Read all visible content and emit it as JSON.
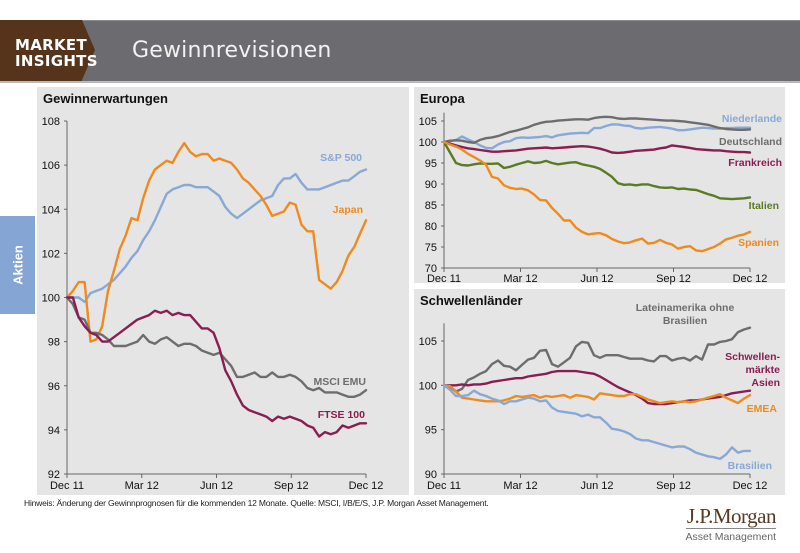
{
  "header": {
    "brand_line1": "MARKET",
    "brand_line2": "INSIGHTS",
    "title": "Gewinnrevisionen",
    "colors": {
      "bar": "#6c6c70",
      "brand": "#56331b"
    }
  },
  "side_tab": {
    "label": "Aktien",
    "color": "#85a6d4"
  },
  "footnote": "Hinweis: Änderung der Gewinnprognosen für die kommenden 12 Monate. Quelle: MSCI, I/B/E/S, J.P. Morgan Asset Management.",
  "logo": {
    "main": "J.P.Morgan",
    "sub": "Asset Management"
  },
  "chart_data": [
    {
      "id": "gewinnerwartungen",
      "type": "line",
      "title": "Gewinnerwartungen",
      "xlabel": "",
      "ylabel": "",
      "x_ticks": [
        "Dec 11",
        "Mar 12",
        "Jun 12",
        "Sep 12",
        "Dec 12"
      ],
      "y_ticks": [
        92,
        94,
        96,
        98,
        100,
        102,
        104,
        106,
        108
      ],
      "ylim": [
        92,
        108
      ],
      "grid": false,
      "legend": "inline labels at line ends (right)",
      "series": [
        {
          "name": "S&P 500",
          "color": "#88a8d6",
          "values": [
            100,
            100,
            100,
            99.8,
            100.2,
            100.3,
            100.4,
            100.6,
            100.8,
            101.1,
            101.4,
            101.8,
            102.1,
            102.6,
            103.0,
            103.5,
            104.1,
            104.7,
            104.9,
            105.0,
            105.1,
            105.1,
            105.0,
            105.0,
            105.0,
            104.8,
            104.6,
            104.1,
            103.8,
            103.6,
            103.8,
            104.0,
            104.2,
            104.4,
            104.5,
            104.6,
            105.1,
            105.4,
            105.4,
            105.6,
            105.2,
            104.9,
            104.9,
            104.9,
            105.0,
            105.1,
            105.2,
            105.3,
            105.3,
            105.5,
            105.7,
            105.8
          ]
        },
        {
          "name": "Japan",
          "color": "#ef8a1e",
          "values": [
            100,
            100.3,
            100.7,
            100.7,
            98.0,
            98.1,
            98.7,
            100.3,
            101.2,
            102.2,
            102.8,
            103.6,
            103.5,
            104.5,
            105.3,
            105.8,
            106.0,
            106.2,
            106.1,
            106.6,
            107.0,
            106.6,
            106.4,
            106.5,
            106.5,
            106.2,
            106.3,
            106.2,
            106.1,
            105.8,
            105.4,
            105.2,
            104.9,
            104.6,
            104.2,
            103.7,
            103.8,
            103.9,
            104.3,
            104.2,
            103.3,
            103.0,
            103.0,
            100.8,
            100.6,
            100.4,
            100.7,
            101.2,
            101.9,
            102.3,
            102.9,
            103.5
          ]
        },
        {
          "name": "MSCI EMU",
          "color": "#6d6d6d",
          "values": [
            100,
            99.7,
            99.1,
            99.0,
            98.4,
            98.4,
            98.3,
            98.1,
            97.8,
            97.8,
            97.8,
            97.9,
            98.0,
            98.3,
            98.0,
            97.9,
            98.1,
            98.2,
            98.0,
            97.8,
            97.9,
            97.9,
            97.8,
            97.6,
            97.5,
            97.4,
            97.5,
            97.2,
            96.9,
            96.4,
            96.4,
            96.5,
            96.6,
            96.4,
            96.4,
            96.6,
            96.4,
            96.4,
            96.5,
            96.4,
            96.2,
            95.9,
            95.8,
            95.9,
            95.7,
            95.7,
            95.7,
            95.6,
            95.5,
            95.5,
            95.6,
            95.8
          ]
        },
        {
          "name": "FTSE 100",
          "color": "#8a1d52",
          "values": [
            100,
            100,
            99.1,
            98.7,
            98.4,
            98.3,
            98.0,
            98.0,
            98.2,
            98.4,
            98.6,
            98.8,
            99.0,
            99.1,
            99.2,
            99.4,
            99.3,
            99.4,
            99.2,
            99.3,
            99.2,
            99.2,
            98.9,
            98.6,
            98.6,
            98.4,
            97.7,
            96.7,
            96.2,
            95.6,
            95.1,
            94.9,
            94.8,
            94.7,
            94.6,
            94.4,
            94.6,
            94.5,
            94.6,
            94.5,
            94.4,
            94.2,
            94.1,
            93.7,
            93.9,
            93.8,
            93.9,
            94.2,
            94.1,
            94.2,
            94.3,
            94.3
          ]
        }
      ]
    },
    {
      "id": "europa",
      "type": "line",
      "title": "Europa",
      "xlabel": "",
      "ylabel": "",
      "x_ticks": [
        "Dec 11",
        "Mar 12",
        "Jun 12",
        "Sep 12",
        "Dec 12"
      ],
      "y_ticks": [
        70,
        75,
        80,
        85,
        90,
        95,
        100,
        105
      ],
      "ylim": [
        70,
        107
      ],
      "grid": false,
      "legend": "inline labels at line ends (right)",
      "series": [
        {
          "name": "Niederlande",
          "color": "#88a8d6",
          "values": [
            100,
            100.2,
            100.5,
            101.3,
            100.6,
            100.0,
            99.2,
            98.6,
            98.5,
            99.4,
            100.0,
            100.2,
            100.9,
            101.1,
            101.0,
            101.1,
            101.2,
            101.4,
            101.1,
            101.6,
            101.8,
            102.0,
            102.1,
            102.2,
            102.1,
            103.3,
            103.3,
            103.8,
            104.2,
            104.2,
            103.9,
            103.8,
            103.3,
            103.2,
            103.4,
            103.5,
            103.6,
            103.4,
            103.2,
            102.8,
            102.8,
            103.0,
            103.2,
            103.4,
            103.3,
            103.2,
            103.2,
            103.3,
            103.3,
            103.4,
            103.4,
            103.4
          ]
        },
        {
          "name": "Deutschland",
          "color": "#6d6d6d",
          "values": [
            100,
            100.3,
            100.4,
            100.3,
            100.0,
            99.8,
            100.5,
            100.9,
            101.1,
            101.4,
            101.9,
            102.4,
            102.7,
            103.1,
            103.5,
            104.1,
            104.5,
            104.8,
            104.9,
            105.1,
            105.2,
            105.3,
            105.4,
            105.4,
            105.3,
            105.7,
            105.9,
            106.0,
            105.9,
            105.6,
            105.5,
            105.6,
            105.6,
            105.5,
            105.4,
            105.3,
            105.2,
            105.1,
            105.1,
            105.0,
            104.9,
            104.7,
            104.5,
            104.3,
            104.1,
            103.7,
            103.3,
            103.1,
            103.0,
            102.9,
            102.9,
            103.0
          ]
        },
        {
          "name": "Frankreich",
          "color": "#8a1d52",
          "values": [
            100,
            99.6,
            99.2,
            98.8,
            98.5,
            98.3,
            98.1,
            97.9,
            97.7,
            97.7,
            97.8,
            97.9,
            98.0,
            98.2,
            98.4,
            98.5,
            98.6,
            98.7,
            98.5,
            98.6,
            98.7,
            98.8,
            98.9,
            99.0,
            98.9,
            98.7,
            98.4,
            98.0,
            97.5,
            97.4,
            97.5,
            97.7,
            97.9,
            98.0,
            98.1,
            98.2,
            98.5,
            98.7,
            99.2,
            99.0,
            98.8,
            98.6,
            98.3,
            98.2,
            98.1,
            98.0,
            98.0,
            97.8,
            97.7,
            97.6,
            97.6,
            97.5
          ]
        },
        {
          "name": "Italien",
          "color": "#5b7a24",
          "values": [
            100,
            97.5,
            95.0,
            94.5,
            94.4,
            94.7,
            94.9,
            94.8,
            94.8,
            94.9,
            93.8,
            94.1,
            94.6,
            95.0,
            95.4,
            95.0,
            95.1,
            95.5,
            95.0,
            94.7,
            94.9,
            95.1,
            95.2,
            94.7,
            94.4,
            94.1,
            93.6,
            92.7,
            91.7,
            90.2,
            89.8,
            89.9,
            89.7,
            89.9,
            89.9,
            89.5,
            89.2,
            89.1,
            89.2,
            88.8,
            88.9,
            88.7,
            88.6,
            88.1,
            87.6,
            87.2,
            86.6,
            86.5,
            86.4,
            86.5,
            86.6,
            86.8
          ]
        },
        {
          "name": "Spanien",
          "color": "#ef8a1e",
          "values": [
            100,
            99.4,
            98.9,
            98.2,
            97.2,
            96.4,
            95.6,
            94.6,
            91.7,
            91.3,
            89.7,
            89.1,
            88.8,
            88.9,
            88.5,
            87.5,
            86.2,
            86.1,
            84.3,
            82.9,
            81.3,
            81.3,
            79.6,
            78.6,
            78.0,
            78.2,
            78.3,
            77.8,
            76.9,
            76.3,
            75.9,
            76.1,
            76.6,
            77.0,
            75.8,
            76.0,
            76.7,
            76.0,
            75.6,
            74.6,
            75.0,
            75.2,
            74.2,
            74.0,
            74.5,
            75.0,
            75.8,
            76.8,
            77.2,
            77.7,
            78.0,
            78.6
          ]
        }
      ]
    },
    {
      "id": "schwellenlaender",
      "type": "line",
      "title": "Schwellenländer",
      "xlabel": "",
      "ylabel": "",
      "x_ticks": [
        "Dec 11",
        "Mar 12",
        "Jun 12",
        "Sep 12",
        "Dec 12"
      ],
      "y_ticks": [
        90,
        95,
        100,
        105
      ],
      "ylim": [
        90,
        107
      ],
      "grid": false,
      "legend": "inline labels at right",
      "series": [
        {
          "name": "Lateinamerika ohne Brasilien",
          "color": "#6d6d6d",
          "values": [
            100,
            99.8,
            99.3,
            99.6,
            100.6,
            100.9,
            101.3,
            101.6,
            102.4,
            102.8,
            102.2,
            102.1,
            101.7,
            102.3,
            102.9,
            103.1,
            103.9,
            104.0,
            102.4,
            102.1,
            102.6,
            103.1,
            104.4,
            104.9,
            104.8,
            103.4,
            103.1,
            103.4,
            103.4,
            103.4,
            103.2,
            103.0,
            103.0,
            103.0,
            102.8,
            102.7,
            103.3,
            103.3,
            102.8,
            103.0,
            103.1,
            102.8,
            103.3,
            102.9,
            104.6,
            104.6,
            104.9,
            105.0,
            105.2,
            106.0,
            106.3,
            106.5
          ]
        },
        {
          "name": "Schwellenmärkte Asien",
          "color": "#8a1d52",
          "values": [
            100,
            100,
            100,
            100.1,
            100.0,
            100.1,
            100.1,
            100.2,
            100.4,
            100.5,
            100.6,
            100.7,
            100.8,
            100.8,
            101.0,
            101.1,
            101.2,
            101.3,
            101.5,
            101.6,
            101.6,
            101.6,
            101.6,
            101.5,
            101.4,
            101.3,
            101.0,
            100.6,
            100.2,
            99.8,
            99.5,
            99.2,
            98.9,
            98.5,
            98.0,
            97.9,
            97.9,
            97.9,
            98.0,
            98.1,
            98.2,
            98.3,
            98.3,
            98.4,
            98.5,
            98.6,
            98.7,
            98.9,
            99.1,
            99.2,
            99.3,
            99.4
          ]
        },
        {
          "name": "EMEA",
          "color": "#ef8a1e",
          "values": [
            100,
            99.9,
            99.3,
            98.6,
            98.5,
            98.4,
            98.3,
            98.2,
            98.2,
            98.2,
            98.3,
            98.5,
            98.8,
            98.7,
            98.8,
            98.9,
            98.6,
            98.8,
            98.7,
            98.8,
            98.9,
            98.6,
            98.9,
            98.8,
            98.7,
            98.4,
            99.1,
            99.0,
            98.9,
            98.8,
            98.8,
            99.0,
            99.0,
            98.7,
            98.4,
            98.2,
            98.0,
            98.1,
            98.2,
            98.1,
            98.2,
            98.1,
            98.2,
            98.4,
            98.6,
            98.8,
            99.0,
            98.6,
            98.3,
            98.0,
            98.5,
            98.9
          ]
        },
        {
          "name": "Brasilien",
          "color": "#88a8d6",
          "values": [
            100,
            99.5,
            98.8,
            98.8,
            98.9,
            99.4,
            99.0,
            98.8,
            98.5,
            98.3,
            97.9,
            98.2,
            98.2,
            98.4,
            98.6,
            98.5,
            98.2,
            98.3,
            97.5,
            97.1,
            97.0,
            96.9,
            96.8,
            96.5,
            96.7,
            96.4,
            96.4,
            95.8,
            95.1,
            95.0,
            94.8,
            94.5,
            94.0,
            93.8,
            93.8,
            93.6,
            93.4,
            93.2,
            93.0,
            93.1,
            93.1,
            92.8,
            92.4,
            92.2,
            92.0,
            91.9,
            91.7,
            92.2,
            93.0,
            92.4,
            92.6,
            92.6
          ]
        }
      ]
    }
  ]
}
